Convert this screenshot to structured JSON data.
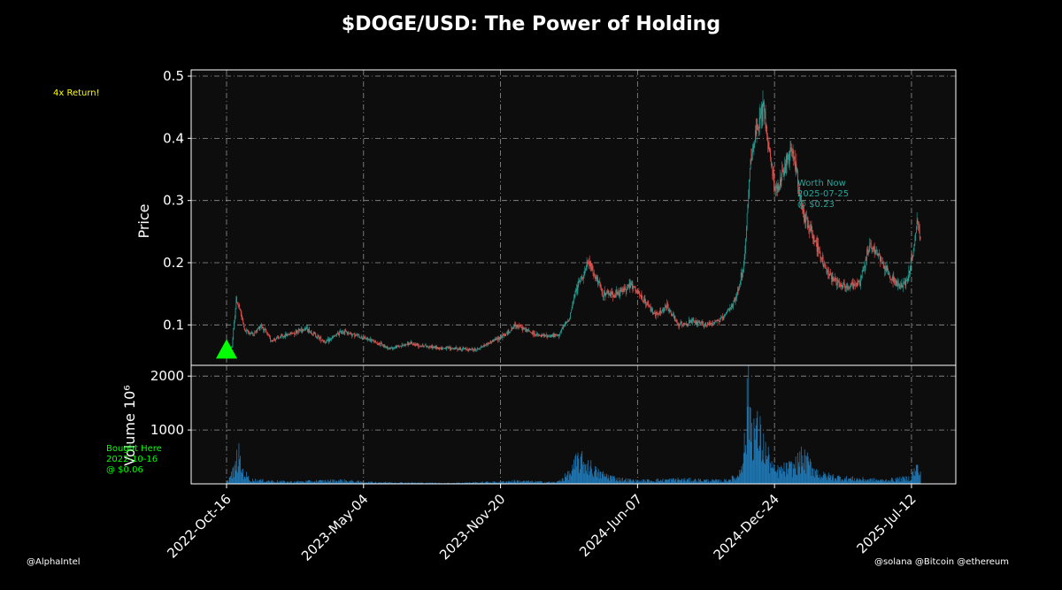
{
  "title": "$DOGE/USD: The Power of Holding",
  "footer_left": "@AlphaIntel",
  "footer_right": "@solana @Bitcoin @ethereum",
  "annotations": {
    "return_note": "4x Return!",
    "bought": [
      "Bought Here",
      "2022-10-16",
      "@ $0.06"
    ],
    "worth": [
      "Worth Now",
      "2025-07-25",
      "@ $0.23"
    ]
  },
  "colors": {
    "background": "#000000",
    "plot_bg": "#0d0d0d",
    "up": "#26a69a",
    "down": "#ef5350",
    "volume": "#1f77b4",
    "marker": "#00ff00",
    "return_note": "#ffff00",
    "bought_note": "#00ff00",
    "worth_note": "#26a69a",
    "grid": "#aaaaaa"
  },
  "chart_data": {
    "type": "candlestick",
    "price_panel": {
      "ylabel": "Price",
      "y_ticks": [
        "0.1",
        "0.2",
        "0.3",
        "0.4",
        "0.5"
      ],
      "y_tick_values": [
        0.1,
        0.2,
        0.3,
        0.4,
        0.5
      ],
      "ylim": [
        0.035,
        0.51
      ]
    },
    "volume_panel": {
      "ylabel": "Volume  10⁶",
      "y_ticks": [
        "1000",
        "2000"
      ],
      "y_tick_values": [
        1000,
        2000
      ],
      "ylim": [
        0,
        2200
      ]
    },
    "x_ticks": [
      "2022-Oct-16",
      "2023-May-04",
      "2023-Nov-20",
      "2024-Jun-07",
      "2024-Dec-24",
      "2025-Jul-12"
    ],
    "x_range": [
      "2022-10-16",
      "2025-07-25"
    ],
    "price_keypoints": [
      [
        "2022-10-16",
        0.06
      ],
      [
        "2022-10-24",
        0.065
      ],
      [
        "2022-10-30",
        0.14
      ],
      [
        "2022-11-03",
        0.13
      ],
      [
        "2022-11-12",
        0.09
      ],
      [
        "2022-11-25",
        0.085
      ],
      [
        "2022-12-05",
        0.1
      ],
      [
        "2022-12-20",
        0.075
      ],
      [
        "2023-01-15",
        0.085
      ],
      [
        "2023-02-08",
        0.095
      ],
      [
        "2023-03-10",
        0.072
      ],
      [
        "2023-04-03",
        0.09
      ],
      [
        "2023-04-18",
        0.085
      ],
      [
        "2023-05-15",
        0.075
      ],
      [
        "2023-06-12",
        0.062
      ],
      [
        "2023-07-10",
        0.07
      ],
      [
        "2023-08-20",
        0.063
      ],
      [
        "2023-09-15",
        0.062
      ],
      [
        "2023-10-15",
        0.06
      ],
      [
        "2023-11-10",
        0.075
      ],
      [
        "2023-11-28",
        0.085
      ],
      [
        "2023-12-12",
        0.1
      ],
      [
        "2024-01-15",
        0.082
      ],
      [
        "2024-02-12",
        0.083
      ],
      [
        "2024-02-28",
        0.11
      ],
      [
        "2024-03-10",
        0.16
      ],
      [
        "2024-03-28",
        0.2
      ],
      [
        "2024-04-05",
        0.18
      ],
      [
        "2024-04-18",
        0.15
      ],
      [
        "2024-05-10",
        0.15
      ],
      [
        "2024-05-28",
        0.165
      ],
      [
        "2024-06-15",
        0.14
      ],
      [
        "2024-07-05",
        0.115
      ],
      [
        "2024-07-20",
        0.13
      ],
      [
        "2024-08-05",
        0.1
      ],
      [
        "2024-08-25",
        0.105
      ],
      [
        "2024-09-15",
        0.1
      ],
      [
        "2024-10-10",
        0.11
      ],
      [
        "2024-10-28",
        0.14
      ],
      [
        "2024-11-10",
        0.2
      ],
      [
        "2024-11-20",
        0.38
      ],
      [
        "2024-12-01",
        0.42
      ],
      [
        "2024-12-08",
        0.45
      ],
      [
        "2024-12-20",
        0.35
      ],
      [
        "2024-12-28",
        0.31
      ],
      [
        "2025-01-10",
        0.36
      ],
      [
        "2025-01-20",
        0.38
      ],
      [
        "2025-02-03",
        0.28
      ],
      [
        "2025-02-20",
        0.24
      ],
      [
        "2025-03-08",
        0.19
      ],
      [
        "2025-03-25",
        0.17
      ],
      [
        "2025-04-10",
        0.16
      ],
      [
        "2025-04-28",
        0.17
      ],
      [
        "2025-05-12",
        0.23
      ],
      [
        "2025-05-26",
        0.21
      ],
      [
        "2025-06-10",
        0.18
      ],
      [
        "2025-06-25",
        0.16
      ],
      [
        "2025-07-05",
        0.17
      ],
      [
        "2025-07-15",
        0.22
      ],
      [
        "2025-07-21",
        0.27
      ],
      [
        "2025-07-25",
        0.23
      ]
    ],
    "volume_keypoints": [
      [
        "2022-10-16",
        20
      ],
      [
        "2022-10-28",
        300
      ],
      [
        "2022-11-02",
        620
      ],
      [
        "2022-11-08",
        260
      ],
      [
        "2022-11-20",
        80
      ],
      [
        "2023-01-15",
        40
      ],
      [
        "2023-04-03",
        70
      ],
      [
        "2023-05-04",
        35
      ],
      [
        "2023-09-01",
        15
      ],
      [
        "2023-11-20",
        40
      ],
      [
        "2023-12-10",
        60
      ],
      [
        "2024-02-10",
        30
      ],
      [
        "2024-03-01",
        220
      ],
      [
        "2024-03-12",
        500
      ],
      [
        "2024-03-28",
        380
      ],
      [
        "2024-04-10",
        220
      ],
      [
        "2024-05-10",
        100
      ],
      [
        "2024-06-07",
        60
      ],
      [
        "2024-08-05",
        90
      ],
      [
        "2024-10-10",
        60
      ],
      [
        "2024-11-01",
        150
      ],
      [
        "2024-11-12",
        900
      ],
      [
        "2024-11-16",
        2050
      ],
      [
        "2024-11-20",
        1200
      ],
      [
        "2024-12-02",
        1000
      ],
      [
        "2024-12-10",
        700
      ],
      [
        "2024-12-24",
        250
      ],
      [
        "2025-01-20",
        350
      ],
      [
        "2025-02-03",
        540
      ],
      [
        "2025-03-01",
        180
      ],
      [
        "2025-04-10",
        110
      ],
      [
        "2025-06-01",
        70
      ],
      [
        "2025-07-10",
        120
      ],
      [
        "2025-07-20",
        340
      ],
      [
        "2025-07-25",
        180
      ]
    ]
  }
}
